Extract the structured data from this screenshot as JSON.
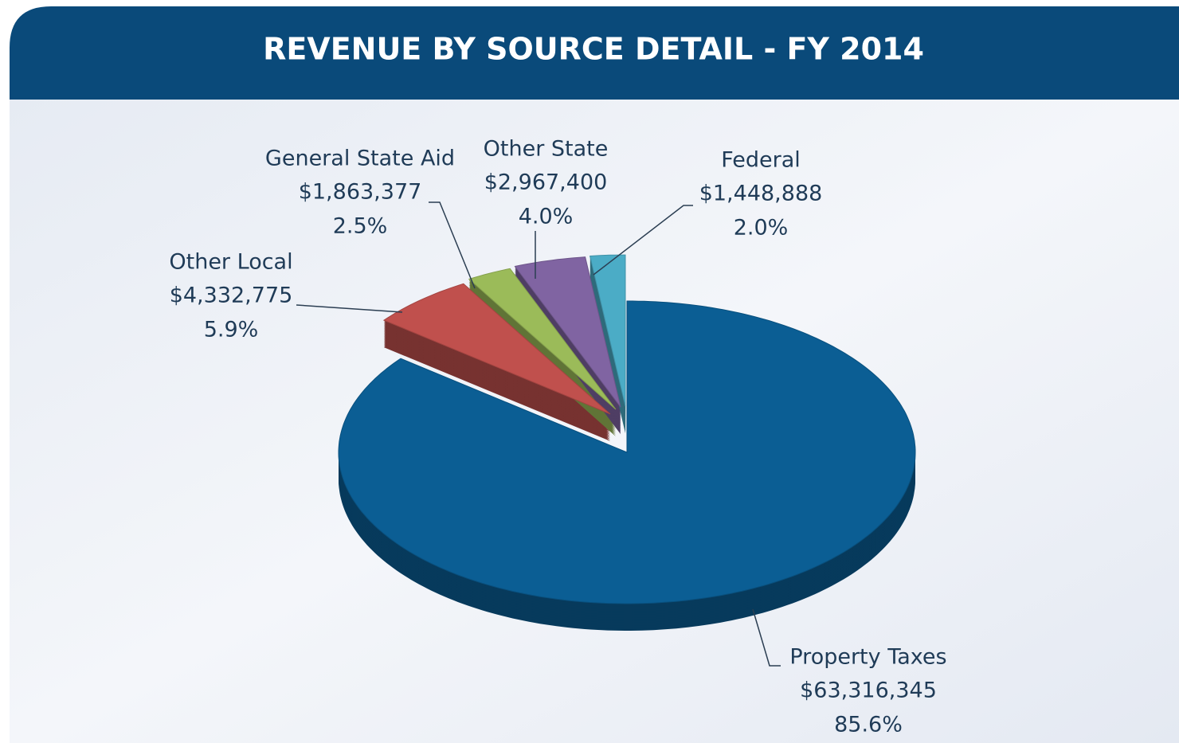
{
  "chart_data": {
    "type": "pie",
    "title": "REVENUE BY SOURCE DETAIL - FY 2014",
    "categories": [
      "Property Taxes",
      "Other Local",
      "General State Aid",
      "Other State",
      "Federal"
    ],
    "values": [
      63316345,
      4332775,
      1863377,
      2967400,
      1448888
    ],
    "value_labels": [
      "$63,316,345",
      "$4,332,775",
      "$1,863,377",
      "$2,967,400",
      "$1,448,888"
    ],
    "percents": [
      85.6,
      5.9,
      2.5,
      4.0,
      2.0
    ],
    "percent_labels": [
      "85.6%",
      "5.9%",
      "2.5%",
      "4.0%",
      "2.0%"
    ],
    "colors": [
      "#0b5e94",
      "#c0504d",
      "#9bbb59",
      "#8064a2",
      "#4bacc6"
    ]
  }
}
